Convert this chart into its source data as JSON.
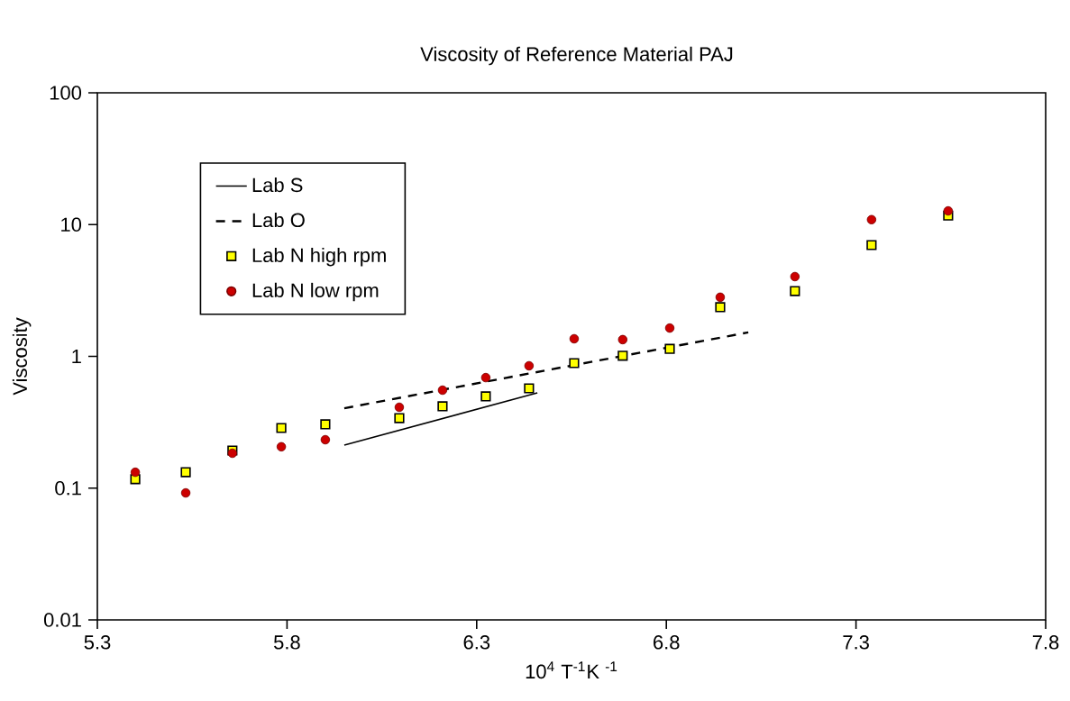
{
  "chart_data": {
    "type": "scatter",
    "title": "Viscosity of Reference Material PAJ",
    "xlabel": "10$^{4}$ T$^{-1}$K $^{-1}$",
    "ylabel": "Viscosity",
    "xlim": [
      5.3,
      7.8
    ],
    "xticks": [
      5.3,
      5.8,
      6.3,
      6.8,
      7.3,
      7.8
    ],
    "ylim": [
      0.01,
      100
    ],
    "yticks": [
      0.01,
      0.1,
      1,
      10,
      100
    ],
    "log": "y",
    "grid": false,
    "legend": "top left",
    "series": [
      {
        "name": "Lab S",
        "type": "line",
        "color": "#000000",
        "marker": "none",
        "line_style": "solid",
        "x": [
          5.951,
          6.46
        ],
        "values": [
          0.212,
          0.528
        ]
      },
      {
        "name": "Lab O",
        "type": "line",
        "color": "#000000",
        "marker": "none",
        "line_style": "dashed",
        "x": [
          5.951,
          7.016
        ],
        "values": [
          0.404,
          1.52
        ]
      },
      {
        "name": "Lab N high rpm",
        "type": "scatter",
        "color": "#ffff00",
        "marker": "square",
        "x": [
          5.4,
          5.533,
          5.656,
          5.785,
          5.901,
          6.096,
          6.21,
          6.324,
          6.438,
          6.557,
          6.685,
          6.809,
          6.942,
          7.139,
          7.341,
          7.543
        ],
        "values": [
          0.117,
          0.132,
          0.193,
          0.286,
          0.305,
          0.34,
          0.418,
          0.497,
          0.572,
          0.889,
          1.01,
          1.14,
          2.36,
          3.13,
          6.99,
          11.7
        ]
      },
      {
        "name": "Lab N low rpm",
        "type": "scatter",
        "color": "#cc0000",
        "marker": "circle",
        "x": [
          5.4,
          5.533,
          5.656,
          5.785,
          5.901,
          6.096,
          6.21,
          6.324,
          6.438,
          6.557,
          6.685,
          6.809,
          6.942,
          7.139,
          7.341,
          7.543
        ],
        "values": [
          0.132,
          0.092,
          0.184,
          0.206,
          0.233,
          0.411,
          0.554,
          0.69,
          0.848,
          1.36,
          1.34,
          1.64,
          2.81,
          4.03,
          10.9,
          12.7
        ]
      }
    ]
  }
}
